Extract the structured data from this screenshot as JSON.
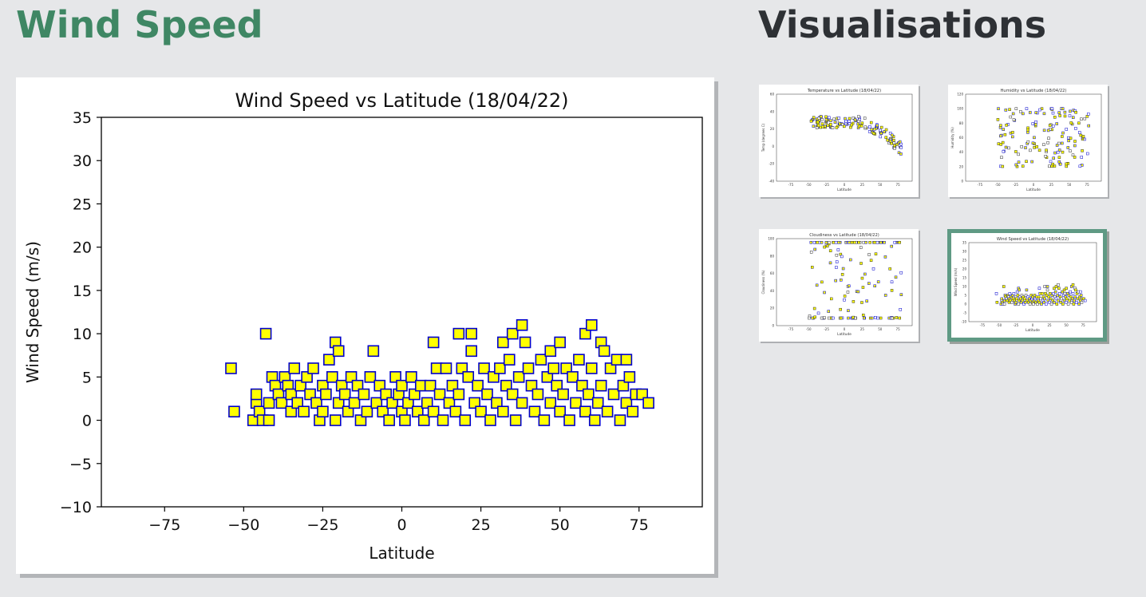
{
  "page": {
    "title": "Wind Speed",
    "sidebar_title": "Visualisations"
  },
  "colors": {
    "title_green": "#3f8764",
    "marker_face": "#ffff00",
    "marker_edge": "#0000cc",
    "active_border": "#5f9a84"
  },
  "thumbnails": [
    {
      "title": "Temperature vs Latitude (18/04/22)",
      "ylabel": "Temp (degrees C)",
      "xlabel": "Latitude",
      "yticks": [
        "60",
        "40",
        "20",
        "0",
        "-20",
        "-40"
      ],
      "xticks": [
        "-75",
        "-50",
        "-25",
        "0",
        "25",
        "50",
        "75"
      ],
      "active": false
    },
    {
      "title": "Humidity vs Latitude (18/04/22)",
      "ylabel": "Humidity (%)",
      "xlabel": "Latitude",
      "yticks": [
        "120",
        "100",
        "80",
        "60",
        "40",
        "20",
        "0"
      ],
      "xticks": [
        "-75",
        "-50",
        "-25",
        "0",
        "25",
        "50",
        "75"
      ],
      "active": false
    },
    {
      "title": "Cloudiness vs Latitude (18/04/22)",
      "ylabel": "Cloudiness (%)",
      "xlabel": "Latitude",
      "yticks": [
        "100",
        "80",
        "60",
        "40",
        "20",
        "0"
      ],
      "xticks": [
        "-75",
        "-50",
        "-25",
        "0",
        "25",
        "50",
        "75"
      ],
      "active": false
    },
    {
      "title": "Wind Speed vs Latitude (18/04/22)",
      "ylabel": "Wind Speed (m/s)",
      "xlabel": "Latitude",
      "yticks": [
        "35",
        "30",
        "25",
        "20",
        "15",
        "10",
        "5",
        "0",
        "-5",
        "-10"
      ],
      "xticks": [
        "-75",
        "-50",
        "-25",
        "0",
        "25",
        "50",
        "75"
      ],
      "active": true
    }
  ],
  "chart_data": {
    "type": "scatter",
    "title": "Wind Speed vs Latitude (18/04/22)",
    "xlabel": "Latitude",
    "ylabel": "Wind Speed (m/s)",
    "xlim": [
      -95,
      95
    ],
    "ylim": [
      -10,
      35
    ],
    "xticks": [
      -75,
      -50,
      -25,
      0,
      25,
      50,
      75
    ],
    "yticks": [
      -10,
      -5,
      0,
      5,
      10,
      15,
      20,
      25,
      30,
      35
    ],
    "xtick_labels": [
      "−75",
      "−50",
      "−25",
      "0",
      "25",
      "50",
      "75"
    ],
    "ytick_labels": [
      "−10",
      "−5",
      "0",
      "5",
      "10",
      "15",
      "20",
      "25",
      "30",
      "35"
    ],
    "grid": false,
    "marker": "square",
    "points": [
      [
        -54,
        6
      ],
      [
        -53,
        1
      ],
      [
        -47,
        0
      ],
      [
        -46,
        2
      ],
      [
        -46,
        3
      ],
      [
        -45,
        1
      ],
      [
        -44,
        0
      ],
      [
        -43,
        10
      ],
      [
        -42,
        2
      ],
      [
        -42,
        0
      ],
      [
        -41,
        5
      ],
      [
        -40,
        4
      ],
      [
        -39,
        3
      ],
      [
        -38,
        2
      ],
      [
        -37,
        5
      ],
      [
        -36,
        4
      ],
      [
        -35,
        3
      ],
      [
        -35,
        1
      ],
      [
        -34,
        6
      ],
      [
        -33,
        2
      ],
      [
        -32,
        4
      ],
      [
        -31,
        1
      ],
      [
        -30,
        5
      ],
      [
        -29,
        3
      ],
      [
        -28,
        6
      ],
      [
        -27,
        2
      ],
      [
        -26,
        0
      ],
      [
        -25,
        4
      ],
      [
        -25,
        1
      ],
      [
        -24,
        3
      ],
      [
        -23,
        7
      ],
      [
        -22,
        5
      ],
      [
        -21,
        9
      ],
      [
        -21,
        0
      ],
      [
        -20,
        8
      ],
      [
        -20,
        2
      ],
      [
        -19,
        4
      ],
      [
        -18,
        3
      ],
      [
        -17,
        1
      ],
      [
        -16,
        5
      ],
      [
        -15,
        2
      ],
      [
        -14,
        4
      ],
      [
        -13,
        0
      ],
      [
        -12,
        3
      ],
      [
        -11,
        1
      ],
      [
        -10,
        5
      ],
      [
        -9,
        8
      ],
      [
        -8,
        2
      ],
      [
        -7,
        4
      ],
      [
        -6,
        1
      ],
      [
        -5,
        3
      ],
      [
        -4,
        0
      ],
      [
        -3,
        2
      ],
      [
        -2,
        5
      ],
      [
        -1,
        3
      ],
      [
        0,
        1
      ],
      [
        0,
        4
      ],
      [
        1,
        0
      ],
      [
        2,
        2
      ],
      [
        3,
        5
      ],
      [
        4,
        3
      ],
      [
        5,
        1
      ],
      [
        6,
        4
      ],
      [
        7,
        0
      ],
      [
        8,
        2
      ],
      [
        9,
        4
      ],
      [
        10,
        9
      ],
      [
        10,
        1
      ],
      [
        11,
        6
      ],
      [
        12,
        3
      ],
      [
        13,
        0
      ],
      [
        14,
        6
      ],
      [
        15,
        2
      ],
      [
        16,
        4
      ],
      [
        17,
        1
      ],
      [
        18,
        10
      ],
      [
        18,
        3
      ],
      [
        19,
        6
      ],
      [
        20,
        0
      ],
      [
        21,
        5
      ],
      [
        22,
        10
      ],
      [
        22,
        8
      ],
      [
        23,
        2
      ],
      [
        24,
        4
      ],
      [
        25,
        1
      ],
      [
        26,
        6
      ],
      [
        27,
        3
      ],
      [
        28,
        0
      ],
      [
        29,
        5
      ],
      [
        30,
        2
      ],
      [
        31,
        6
      ],
      [
        32,
        9
      ],
      [
        32,
        1
      ],
      [
        33,
        4
      ],
      [
        34,
        7
      ],
      [
        35,
        10
      ],
      [
        35,
        3
      ],
      [
        36,
        0
      ],
      [
        37,
        5
      ],
      [
        38,
        11
      ],
      [
        38,
        2
      ],
      [
        39,
        9
      ],
      [
        40,
        6
      ],
      [
        41,
        4
      ],
      [
        42,
        1
      ],
      [
        43,
        3
      ],
      [
        44,
        7
      ],
      [
        45,
        0
      ],
      [
        46,
        5
      ],
      [
        47,
        8
      ],
      [
        47,
        2
      ],
      [
        48,
        6
      ],
      [
        49,
        4
      ],
      [
        50,
        9
      ],
      [
        50,
        1
      ],
      [
        51,
        3
      ],
      [
        52,
        6
      ],
      [
        53,
        0
      ],
      [
        54,
        5
      ],
      [
        55,
        2
      ],
      [
        56,
        7
      ],
      [
        57,
        4
      ],
      [
        58,
        10
      ],
      [
        58,
        1
      ],
      [
        59,
        3
      ],
      [
        60,
        11
      ],
      [
        60,
        6
      ],
      [
        61,
        0
      ],
      [
        62,
        2
      ],
      [
        63,
        9
      ],
      [
        63,
        4
      ],
      [
        64,
        8
      ],
      [
        65,
        1
      ],
      [
        66,
        6
      ],
      [
        67,
        3
      ],
      [
        68,
        7
      ],
      [
        69,
        0
      ],
      [
        70,
        4
      ],
      [
        71,
        7
      ],
      [
        71,
        2
      ],
      [
        72,
        5
      ],
      [
        73,
        1
      ],
      [
        74,
        3
      ],
      [
        76,
        3
      ],
      [
        78,
        2
      ]
    ]
  }
}
